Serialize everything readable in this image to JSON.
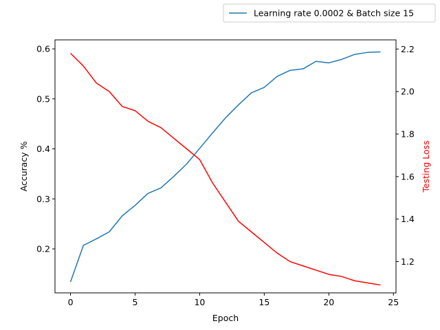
{
  "chart_data": {
    "type": "line",
    "xlabel": "Epoch",
    "ylabel_left": "Accuracy %",
    "ylabel_right": "Testing Loss",
    "xlim": [
      -1.2,
      25.2
    ],
    "ylim_left": [
      0.112,
      0.618
    ],
    "ylim_right": [
      1.053,
      2.243
    ],
    "x_ticks": [
      0,
      5,
      10,
      15,
      20,
      25
    ],
    "y_left_ticks": [
      0.2,
      0.3,
      0.4,
      0.5,
      0.6
    ],
    "y_right_ticks": [
      1.2,
      1.4,
      1.6,
      1.8,
      2.0,
      2.2
    ],
    "x_tick_labels": [
      "0",
      "5",
      "10",
      "15",
      "20",
      "25"
    ],
    "y_left_tick_labels": [
      "0.2",
      "0.3",
      "0.4",
      "0.5",
      "0.6"
    ],
    "y_right_tick_labels": [
      "1.2",
      "1.4",
      "1.6",
      "1.8",
      "2.0",
      "2.2"
    ],
    "grid": false,
    "legend_position": "top-right, above plot",
    "series": [
      {
        "name": "Learning rate 0.0002 & Batch size 15",
        "axis": "left",
        "color": "#1f77b4",
        "x": [
          0,
          1,
          2,
          3,
          4,
          5,
          6,
          7,
          8,
          9,
          10,
          11,
          12,
          13,
          14,
          15,
          16,
          17,
          18,
          19,
          20,
          21,
          22,
          23,
          24
        ],
        "values": [
          0.134,
          0.207,
          0.22,
          0.234,
          0.266,
          0.287,
          0.311,
          0.322,
          0.345,
          0.37,
          0.401,
          0.432,
          0.462,
          0.488,
          0.512,
          0.523,
          0.545,
          0.557,
          0.56,
          0.575,
          0.572,
          0.579,
          0.589,
          0.593,
          0.594
        ]
      },
      {
        "axis": "right",
        "color": "#ff0000",
        "x": [
          0,
          1,
          2,
          3,
          4,
          5,
          6,
          7,
          8,
          9,
          10,
          11,
          12,
          13,
          14,
          15,
          16,
          17,
          18,
          19,
          20,
          21,
          22,
          23,
          24
        ],
        "values": [
          2.18,
          2.12,
          2.04,
          2.0,
          1.93,
          1.91,
          1.86,
          1.83,
          1.78,
          1.73,
          1.68,
          1.57,
          1.48,
          1.39,
          1.34,
          1.29,
          1.24,
          1.2,
          1.18,
          1.16,
          1.14,
          1.13,
          1.11,
          1.1,
          1.09
        ]
      }
    ]
  }
}
